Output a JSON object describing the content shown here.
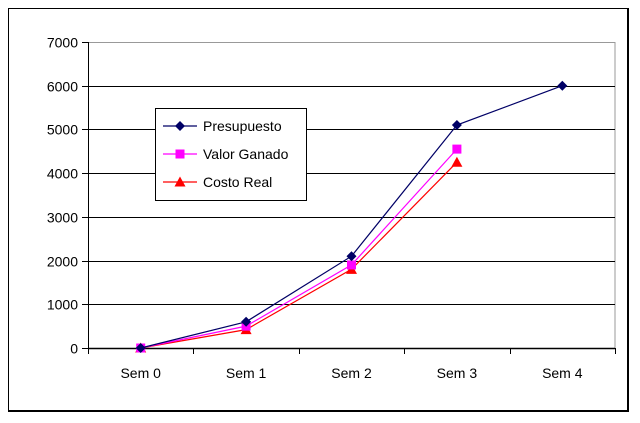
{
  "chart_data": {
    "type": "line",
    "title": "",
    "xlabel": "",
    "ylabel": "",
    "categories": [
      "Sem 0",
      "Sem 1",
      "Sem 2",
      "Sem 3",
      "Sem 4"
    ],
    "ylim": [
      0,
      7000
    ],
    "yticks": [
      0,
      1000,
      2000,
      3000,
      4000,
      5000,
      6000,
      7000
    ],
    "ytick_labels": [
      "0",
      "1000",
      "2000",
      "3000",
      "4000",
      "5000",
      "6000",
      "7000"
    ],
    "grid": true,
    "legend_position": "inside-upper-left",
    "series": [
      {
        "name": "Presupuesto",
        "color": "#000066",
        "marker": "diamond",
        "values": [
          0,
          600,
          2100,
          5100,
          6000
        ]
      },
      {
        "name": "Valor Ganado",
        "color": "#ff00ff",
        "marker": "square",
        "values": [
          0,
          500,
          1900,
          4550,
          null
        ]
      },
      {
        "name": "Costo Real",
        "color": "#ff0000",
        "marker": "triangle",
        "values": [
          0,
          420,
          1800,
          4250,
          null
        ]
      }
    ]
  }
}
